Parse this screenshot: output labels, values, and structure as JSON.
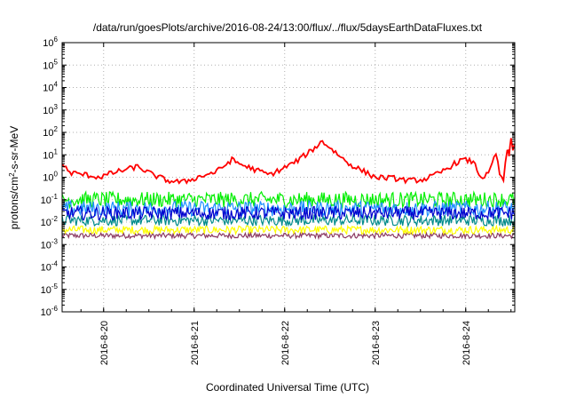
{
  "chart_data": {
    "type": "line",
    "title": "/data/run/goesPlots/archive/2016-08-24/13:00/flux/../flux/5daysEarthDataFluxes.txt",
    "xlabel": "Coordinated Universal Time (UTC)",
    "ylabel": "protons/cm2-s-sr-MeV",
    "ylabel_parts": [
      "protons/cm",
      "2",
      "-s-sr-MeV"
    ],
    "yscale": "log",
    "ylim": [
      1e-06,
      1000000
    ],
    "xlim": [
      "2016-08-19 13:00",
      "2016-08-24 13:00"
    ],
    "grid": true,
    "legend": "none",
    "y_ticks": [
      {
        "base": "10",
        "exp": "-6"
      },
      {
        "base": "10",
        "exp": "-5"
      },
      {
        "base": "10",
        "exp": "-4"
      },
      {
        "base": "10",
        "exp": "-3"
      },
      {
        "base": "10",
        "exp": "-2"
      },
      {
        "base": "10",
        "exp": "-1"
      },
      {
        "base": "10",
        "exp": "0"
      },
      {
        "base": "10",
        "exp": "1"
      },
      {
        "base": "10",
        "exp": "2"
      },
      {
        "base": "10",
        "exp": "3"
      },
      {
        "base": "10",
        "exp": "4"
      },
      {
        "base": "10",
        "exp": "5"
      },
      {
        "base": "10",
        "exp": "6"
      }
    ],
    "x_ticks": [
      {
        "label": "2016-8-20",
        "date": "2016-08-20 00:00"
      },
      {
        "label": "2016-8-21",
        "date": "2016-08-21 00:00"
      },
      {
        "label": "2016-8-22",
        "date": "2016-08-22 00:00"
      },
      {
        "label": "2016-8-23",
        "date": "2016-08-23 00:00"
      },
      {
        "label": "2016-8-24",
        "date": "2016-08-24 00:00"
      }
    ],
    "series": [
      {
        "color": "#ff0000",
        "level": 1.3,
        "jitter": 0.12,
        "points": [
          [
            "2016-08-19 13:00",
            4.0
          ],
          [
            "2016-08-19 15:00",
            1.6
          ],
          [
            "2016-08-19 19:00",
            1.3
          ],
          [
            "2016-08-19 23:00",
            1.0
          ],
          [
            "2016-08-20 02:00",
            1.5
          ],
          [
            "2016-08-20 06:00",
            2.2
          ],
          [
            "2016-08-20 09:00",
            3.0
          ],
          [
            "2016-08-20 13:00",
            1.3
          ],
          [
            "2016-08-20 17:00",
            0.7
          ],
          [
            "2016-08-20 21:00",
            0.6
          ],
          [
            "2016-08-21 01:00",
            1.0
          ],
          [
            "2016-08-21 06:00",
            1.8
          ],
          [
            "2016-08-21 10:00",
            6.0
          ],
          [
            "2016-08-21 12:00",
            4.0
          ],
          [
            "2016-08-21 16:00",
            2.2
          ],
          [
            "2016-08-21 20:00",
            1.3
          ],
          [
            "2016-08-21 23:00",
            2.2
          ],
          [
            "2016-08-22 03:00",
            5.0
          ],
          [
            "2016-08-22 07:00",
            15.0
          ],
          [
            "2016-08-22 10:00",
            40.0
          ],
          [
            "2016-08-22 13:00",
            15.0
          ],
          [
            "2016-08-22 17:00",
            4.0
          ],
          [
            "2016-08-22 21:00",
            1.8
          ],
          [
            "2016-08-23 00:00",
            1.0
          ],
          [
            "2016-08-23 05:00",
            0.9
          ],
          [
            "2016-08-23 09:00",
            0.7
          ],
          [
            "2016-08-23 13:00",
            0.8
          ],
          [
            "2016-08-23 17:00",
            1.5
          ],
          [
            "2016-08-23 21:00",
            4.0
          ],
          [
            "2016-08-23 23:00",
            6.0
          ],
          [
            "2016-08-24 02:00",
            5.0
          ],
          [
            "2016-08-24 04:00",
            1.0
          ],
          [
            "2016-08-24 06:00",
            1.3
          ],
          [
            "2016-08-24 08:00",
            12.0
          ],
          [
            "2016-08-24 09:00",
            1.3
          ],
          [
            "2016-08-24 10:00",
            0.8
          ],
          [
            "2016-08-24 11:00",
            15.0
          ],
          [
            "2016-08-24 11:30",
            10.0
          ],
          [
            "2016-08-24 12:00",
            50.0
          ],
          [
            "2016-08-24 12:30",
            20.0
          ],
          [
            "2016-08-24 13:00",
            30.0
          ]
        ]
      },
      {
        "color": "#00ee00",
        "level": 0.1,
        "jitter": 0.35,
        "points": []
      },
      {
        "color": "#1e90ff",
        "level": 0.04,
        "jitter": 0.35,
        "points": []
      },
      {
        "color": "#0000cd",
        "level": 0.025,
        "jitter": 0.3,
        "points": []
      },
      {
        "color": "#008b8b",
        "level": 0.012,
        "jitter": 0.25,
        "points": []
      },
      {
        "color": "#ffff00",
        "level": 0.0045,
        "jitter": 0.18,
        "points": []
      },
      {
        "color": "#8b3a62",
        "level": 0.0025,
        "jitter": 0.12,
        "points": []
      }
    ]
  }
}
